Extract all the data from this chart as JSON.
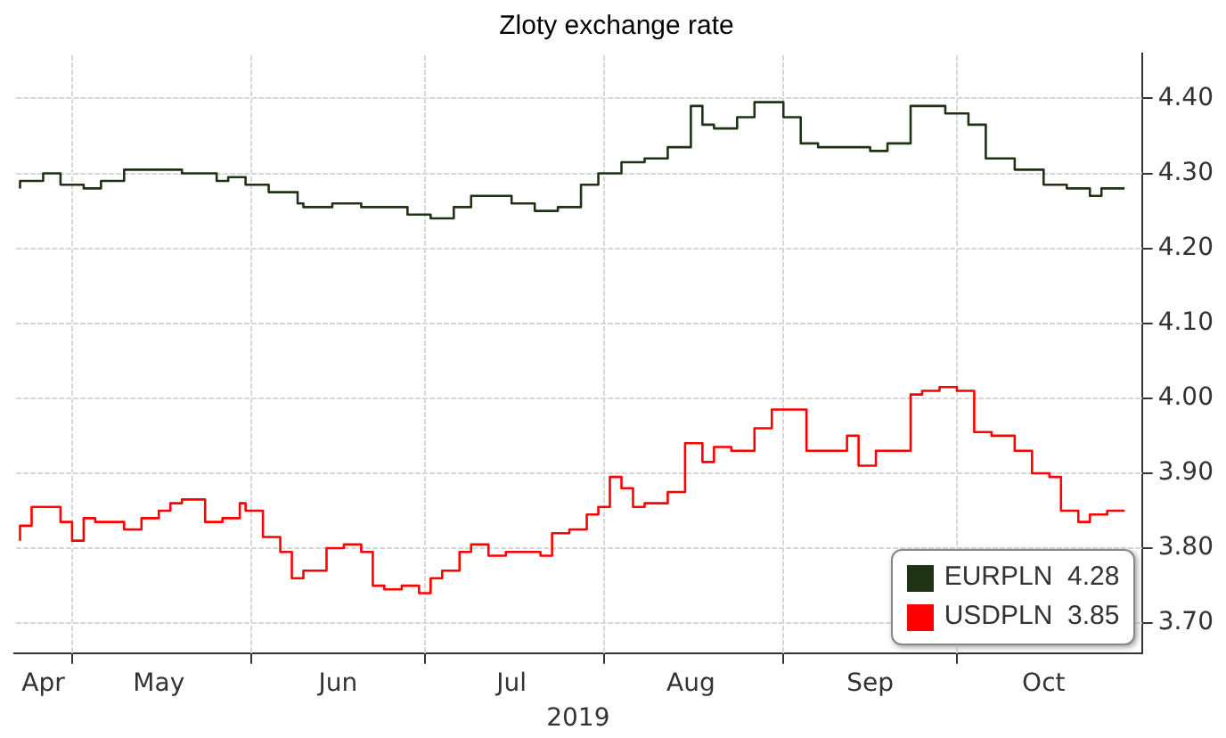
{
  "chart_data": {
    "type": "step",
    "title": "Zloty exchange rate",
    "xlabel": "2019",
    "xlim": [
      "2019-04-21",
      "2019-11-02"
    ],
    "xticks": [
      {
        "value": "2019-04-26",
        "label": "Apr"
      },
      {
        "value": "2019-05-01",
        "label": null
      },
      {
        "value": "2019-05-16",
        "label": "May"
      },
      {
        "value": "2019-06-01",
        "label": null
      },
      {
        "value": "2019-06-16",
        "label": "Jun"
      },
      {
        "value": "2019-07-01",
        "label": null
      },
      {
        "value": "2019-07-16",
        "label": "Jul"
      },
      {
        "value": "2019-08-01",
        "label": null
      },
      {
        "value": "2019-08-16",
        "label": "Aug"
      },
      {
        "value": "2019-09-01",
        "label": null
      },
      {
        "value": "2019-09-16",
        "label": "Sep"
      },
      {
        "value": "2019-10-01",
        "label": null
      },
      {
        "value": "2019-10-16",
        "label": "Oct"
      }
    ],
    "ylim": [
      3.66,
      4.46
    ],
    "yticks": [
      {
        "value": 3.7,
        "label": "3.70"
      },
      {
        "value": 3.8,
        "label": "3.80"
      },
      {
        "value": 3.9,
        "label": "3.90"
      },
      {
        "value": 4.0,
        "label": "4.00"
      },
      {
        "value": 4.1,
        "label": "4.10"
      },
      {
        "value": 4.2,
        "label": "4.20"
      },
      {
        "value": 4.3,
        "label": "4.30"
      },
      {
        "value": 4.4,
        "label": "4.40"
      }
    ],
    "grid": true,
    "legend": "bottom right",
    "series": [
      {
        "name": "EURPLN  4.28",
        "color": "#1f3314",
        "x": [
          "2019-04-22",
          "2019-04-26",
          "2019-04-29",
          "2019-05-03",
          "2019-05-06",
          "2019-05-10",
          "2019-05-15",
          "2019-05-20",
          "2019-05-26",
          "2019-05-28",
          "2019-05-31",
          "2019-06-04",
          "2019-06-09",
          "2019-06-10",
          "2019-06-15",
          "2019-06-20",
          "2019-06-24",
          "2019-06-28",
          "2019-07-02",
          "2019-07-06",
          "2019-07-09",
          "2019-07-13",
          "2019-07-16",
          "2019-07-20",
          "2019-07-24",
          "2019-07-28",
          "2019-07-31",
          "2019-08-04",
          "2019-08-08",
          "2019-08-12",
          "2019-08-16",
          "2019-08-18",
          "2019-08-20",
          "2019-08-24",
          "2019-08-27",
          "2019-09-01",
          "2019-09-04",
          "2019-09-07",
          "2019-09-12",
          "2019-09-16",
          "2019-09-19",
          "2019-09-23",
          "2019-09-25",
          "2019-09-29",
          "2019-10-03",
          "2019-10-06",
          "2019-10-08",
          "2019-10-11",
          "2019-10-16",
          "2019-10-20",
          "2019-10-24",
          "2019-10-26",
          "2019-10-30"
        ],
        "values": [
          4.28,
          4.29,
          4.3,
          4.285,
          4.28,
          4.29,
          4.305,
          4.305,
          4.3,
          4.29,
          4.295,
          4.285,
          4.275,
          4.26,
          4.255,
          4.26,
          4.255,
          4.255,
          4.245,
          4.24,
          4.255,
          4.27,
          4.27,
          4.26,
          4.25,
          4.255,
          4.285,
          4.3,
          4.315,
          4.32,
          4.335,
          4.39,
          4.365,
          4.36,
          4.375,
          4.395,
          4.375,
          4.34,
          4.335,
          4.335,
          4.33,
          4.34,
          4.39,
          4.39,
          4.38,
          4.365,
          4.32,
          4.32,
          4.305,
          4.285,
          4.28,
          4.27,
          4.28
        ]
      },
      {
        "name": "USDPLN  3.85",
        "color": "#ff0000",
        "x": [
          "2019-04-22",
          "2019-04-24",
          "2019-04-26",
          "2019-04-29",
          "2019-05-01",
          "2019-05-03",
          "2019-05-05",
          "2019-05-08",
          "2019-05-10",
          "2019-05-13",
          "2019-05-16",
          "2019-05-18",
          "2019-05-20",
          "2019-05-24",
          "2019-05-27",
          "2019-05-30",
          "2019-05-31",
          "2019-06-03",
          "2019-06-06",
          "2019-06-08",
          "2019-06-10",
          "2019-06-14",
          "2019-06-17",
          "2019-06-20",
          "2019-06-22",
          "2019-06-24",
          "2019-06-27",
          "2019-06-30",
          "2019-07-02",
          "2019-07-04",
          "2019-07-07",
          "2019-07-09",
          "2019-07-12",
          "2019-07-15",
          "2019-07-18",
          "2019-07-21",
          "2019-07-23",
          "2019-07-26",
          "2019-07-29",
          "2019-07-31",
          "2019-08-02",
          "2019-08-04",
          "2019-08-06",
          "2019-08-08",
          "2019-08-12",
          "2019-08-15",
          "2019-08-18",
          "2019-08-20",
          "2019-08-23",
          "2019-08-27",
          "2019-08-30",
          "2019-09-02",
          "2019-09-05",
          "2019-09-08",
          "2019-09-12",
          "2019-09-14",
          "2019-09-17",
          "2019-09-20",
          "2019-09-23",
          "2019-09-25",
          "2019-09-28",
          "2019-10-01",
          "2019-10-04",
          "2019-10-07",
          "2019-10-09",
          "2019-10-11",
          "2019-10-14",
          "2019-10-17",
          "2019-10-19",
          "2019-10-22",
          "2019-10-24",
          "2019-10-27",
          "2019-10-30"
        ],
        "values": [
          3.81,
          3.83,
          3.855,
          3.855,
          3.835,
          3.81,
          3.84,
          3.835,
          3.835,
          3.825,
          3.84,
          3.85,
          3.86,
          3.865,
          3.835,
          3.84,
          3.86,
          3.85,
          3.815,
          3.795,
          3.76,
          3.77,
          3.8,
          3.805,
          3.795,
          3.75,
          3.745,
          3.75,
          3.74,
          3.76,
          3.77,
          3.795,
          3.805,
          3.79,
          3.795,
          3.795,
          3.79,
          3.82,
          3.825,
          3.845,
          3.855,
          3.895,
          3.88,
          3.855,
          3.86,
          3.875,
          3.94,
          3.915,
          3.935,
          3.93,
          3.96,
          3.985,
          3.985,
          3.93,
          3.93,
          3.95,
          3.91,
          3.93,
          3.93,
          4.005,
          4.01,
          4.015,
          4.01,
          3.955,
          3.95,
          3.95,
          3.93,
          3.9,
          3.895,
          3.85,
          3.835,
          3.845,
          3.85
        ]
      }
    ]
  }
}
